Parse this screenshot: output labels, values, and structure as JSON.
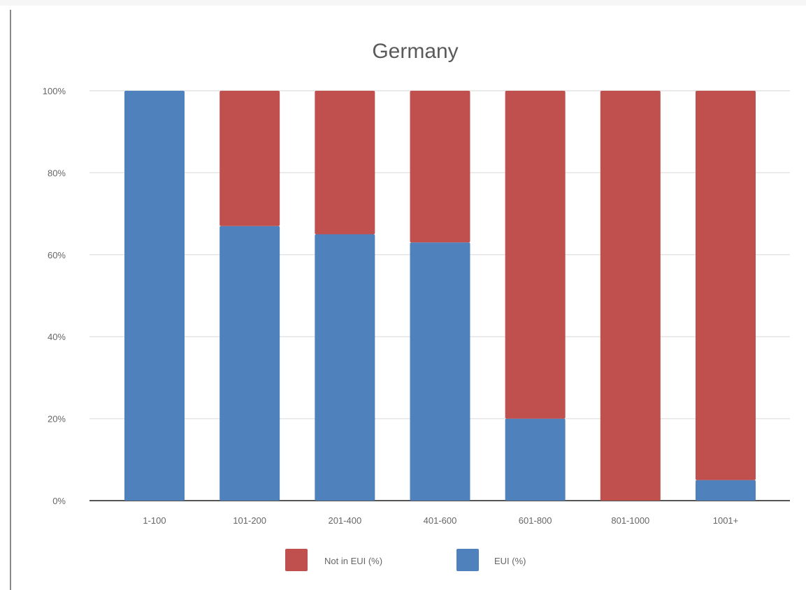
{
  "chart_data": {
    "type": "bar",
    "stacked": true,
    "title": "Germany",
    "categories": [
      "1-100",
      "101-200",
      "201-400",
      "401-600",
      "601-800",
      "801-1000",
      "1001+"
    ],
    "series": [
      {
        "name": "EUI (%)",
        "color": "#4f81bd",
        "values": [
          100,
          67,
          65,
          63,
          20,
          0,
          5
        ]
      },
      {
        "name": "Not in EUI (%)",
        "color": "#c0504d",
        "values": [
          0,
          33,
          35,
          37,
          80,
          100,
          95
        ]
      }
    ],
    "ylim": [
      0,
      100
    ],
    "yticks": [
      "0%",
      "20%",
      "40%",
      "60%",
      "80%",
      "100%"
    ],
    "grid": true,
    "legend": "bottom",
    "legend_order": [
      "Not in EUI (%)",
      "EUI (%)"
    ]
  }
}
